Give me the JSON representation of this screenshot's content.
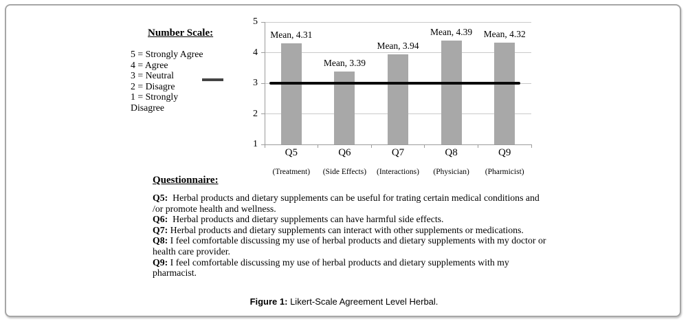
{
  "panel": {
    "border_color": "#a6a6a6"
  },
  "number_scale": {
    "title": "Number Scale:",
    "items": [
      "5 = Strongly Agree",
      "4 = Agree",
      "3 = Neutral",
      "2 = Disagre",
      "1 = Strongly\nDisagree"
    ],
    "neutral_line_color": "#444444"
  },
  "chart_data": {
    "type": "bar",
    "title": "",
    "categories": [
      "Q5",
      "Q6",
      "Q7",
      "Q8",
      "Q9"
    ],
    "category_sublabels": [
      "(Treatment)",
      "(Side Effects)",
      "(Interactions)",
      "(Physician)",
      "(Pharmicist)"
    ],
    "values": [
      4.31,
      3.39,
      3.94,
      4.39,
      4.32
    ],
    "data_labels": [
      "Mean, 4.31",
      "Mean, 3.39",
      "Mean, 3.94",
      "Mean, 4.39",
      "Mean, 4.32"
    ],
    "xlabel": "",
    "ylabel": "",
    "ylim": [
      1,
      5
    ],
    "yticks": [
      1,
      2,
      3,
      4,
      5
    ],
    "grid": true,
    "legend_position": "left",
    "reference_line": {
      "value": 3,
      "meaning": "Neutral",
      "color": "#0a0a0a"
    },
    "bar_color": "#a8a8a8",
    "gridline_color": "#c9c9c9",
    "axis_color": "#9b9b9b"
  },
  "questionnaire": {
    "title": "Questionnaire:",
    "items": [
      {
        "prefix": "Q5:",
        "text": "  Herbal products and dietary supplements can be useful for trating certain medical conditions and /or promote health and wellness."
      },
      {
        "prefix": "Q6:",
        "text": "  Herbal products and dietary supplements can have harmful side effects."
      },
      {
        "prefix": "Q7:",
        "text": " Herbal products and dietary supplements can interact with other supplements or medications."
      },
      {
        "prefix": "Q8:",
        "text": " I feel comfortable discussing my use of herbal products and dietary supplements with my doctor or health care provider."
      },
      {
        "prefix": "Q9:",
        "text": " I feel comfortable discussing my use of herbal products and dietary supplements with my pharmacist."
      }
    ]
  },
  "caption": {
    "label": "Figure 1:",
    "text": " Likert-Scale Agreement Level Herbal."
  }
}
